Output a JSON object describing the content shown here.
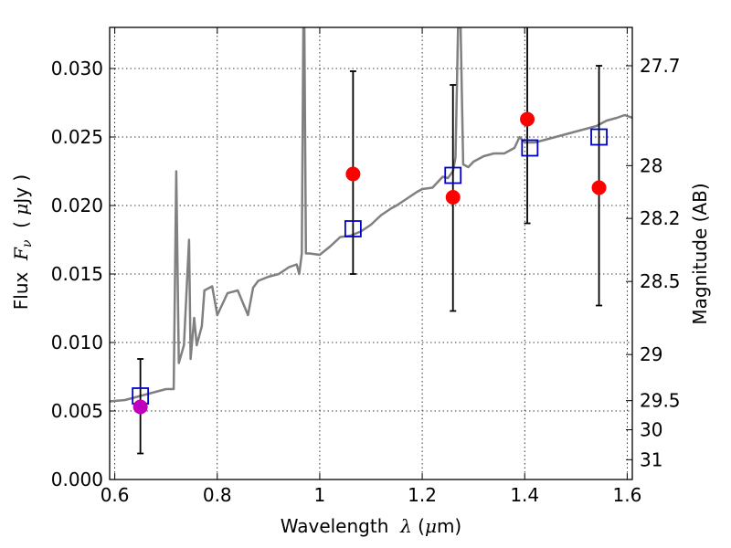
{
  "chart_data": {
    "type": "scatter",
    "xlabel": {
      "prefix": "Wavelength  ",
      "symbol": "λ",
      "unit_open": " (",
      "unit_mu": "μ",
      "unit_rest": "m)"
    },
    "ylabel": {
      "prefix": "Flux  ",
      "symbol": "F",
      "subscript": "ν",
      "unit_open": "  ( ",
      "unit_mu": "μ",
      "unit_rest": "Jy )"
    },
    "y2label": "Magnitude (AB)",
    "xlim": [
      0.59,
      1.61
    ],
    "ylim": [
      0.0,
      0.033
    ],
    "grid": true,
    "x_ticks": [
      {
        "value": 0.6,
        "label": "0.6"
      },
      {
        "value": 0.8,
        "label": "0.8"
      },
      {
        "value": 1.0,
        "label": "1"
      },
      {
        "value": 1.2,
        "label": "1.2"
      },
      {
        "value": 1.4,
        "label": "1.4"
      },
      {
        "value": 1.6,
        "label": "1.6"
      }
    ],
    "y_ticks": [
      {
        "value": 0.0,
        "label": "0.000"
      },
      {
        "value": 0.005,
        "label": "0.005"
      },
      {
        "value": 0.01,
        "label": "0.010"
      },
      {
        "value": 0.015,
        "label": "0.015"
      },
      {
        "value": 0.02,
        "label": "0.020"
      },
      {
        "value": 0.025,
        "label": "0.025"
      },
      {
        "value": 0.03,
        "label": "0.030"
      }
    ],
    "y2_ticks": [
      {
        "magnitude": 27.7,
        "label": "27.7"
      },
      {
        "magnitude": 28.0,
        "label": "28"
      },
      {
        "magnitude": 28.2,
        "label": "28.2"
      },
      {
        "magnitude": 28.5,
        "label": "28.5"
      },
      {
        "magnitude": 29.0,
        "label": "29"
      },
      {
        "magnitude": 29.5,
        "label": "29.5"
      },
      {
        "magnitude": 30.0,
        "label": "30"
      },
      {
        "magnitude": 31.0,
        "label": "31"
      }
    ],
    "series": [
      {
        "kind": "line",
        "color": "#808080",
        "points": [
          [
            0.59,
            0.0057
          ],
          [
            0.62,
            0.0058
          ],
          [
            0.64,
            0.006
          ],
          [
            0.66,
            0.0062
          ],
          [
            0.68,
            0.0064
          ],
          [
            0.7,
            0.0066
          ],
          [
            0.715,
            0.0066
          ],
          [
            0.72,
            0.0225
          ],
          [
            0.725,
            0.0085
          ],
          [
            0.735,
            0.0098
          ],
          [
            0.745,
            0.0175
          ],
          [
            0.748,
            0.0088
          ],
          [
            0.755,
            0.0118
          ],
          [
            0.76,
            0.0098
          ],
          [
            0.77,
            0.0112
          ],
          [
            0.775,
            0.0138
          ],
          [
            0.79,
            0.0141
          ],
          [
            0.8,
            0.012
          ],
          [
            0.81,
            0.0128
          ],
          [
            0.82,
            0.0136
          ],
          [
            0.84,
            0.0138
          ],
          [
            0.86,
            0.012
          ],
          [
            0.87,
            0.014
          ],
          [
            0.88,
            0.0145
          ],
          [
            0.9,
            0.0148
          ],
          [
            0.92,
            0.015
          ],
          [
            0.94,
            0.0155
          ],
          [
            0.955,
            0.0157
          ],
          [
            0.96,
            0.015
          ],
          [
            0.965,
            0.0165
          ],
          [
            0.968,
            0.033
          ],
          [
            0.97,
            0.033
          ],
          [
            0.973,
            0.0165
          ],
          [
            0.98,
            0.0165
          ],
          [
            1.0,
            0.0164
          ],
          [
            1.02,
            0.017
          ],
          [
            1.04,
            0.0177
          ],
          [
            1.06,
            0.0178
          ],
          [
            1.08,
            0.0181
          ],
          [
            1.1,
            0.0186
          ],
          [
            1.12,
            0.0193
          ],
          [
            1.14,
            0.0198
          ],
          [
            1.15,
            0.02
          ],
          [
            1.17,
            0.0205
          ],
          [
            1.19,
            0.021
          ],
          [
            1.2,
            0.0212
          ],
          [
            1.22,
            0.0213
          ],
          [
            1.24,
            0.0221
          ],
          [
            1.25,
            0.022
          ],
          [
            1.26,
            0.0225
          ],
          [
            1.265,
            0.0235
          ],
          [
            1.27,
            0.033
          ],
          [
            1.275,
            0.033
          ],
          [
            1.28,
            0.023
          ],
          [
            1.29,
            0.0228
          ],
          [
            1.3,
            0.0232
          ],
          [
            1.32,
            0.0236
          ],
          [
            1.34,
            0.0238
          ],
          [
            1.36,
            0.0238
          ],
          [
            1.38,
            0.0242
          ],
          [
            1.39,
            0.025
          ],
          [
            1.4,
            0.0246
          ],
          [
            1.42,
            0.0246
          ],
          [
            1.44,
            0.0248
          ],
          [
            1.46,
            0.025
          ],
          [
            1.48,
            0.0252
          ],
          [
            1.5,
            0.0254
          ],
          [
            1.52,
            0.0256
          ],
          [
            1.54,
            0.0258
          ],
          [
            1.56,
            0.0262
          ],
          [
            1.58,
            0.0264
          ],
          [
            1.595,
            0.0266
          ],
          [
            1.61,
            0.0264
          ]
        ]
      },
      {
        "kind": "squares",
        "color": "#0000cc",
        "points": [
          {
            "x": 0.65,
            "y": 0.0061
          },
          {
            "x": 1.065,
            "y": 0.0183
          },
          {
            "x": 1.26,
            "y": 0.0222
          },
          {
            "x": 1.41,
            "y": 0.0242
          },
          {
            "x": 1.545,
            "y": 0.025
          }
        ]
      },
      {
        "kind": "errorbar-points",
        "points": [
          {
            "x": 0.65,
            "y": 0.0053,
            "ylo": 0.0019,
            "yhi": 0.0088,
            "color": "#bf00bf"
          },
          {
            "x": 1.065,
            "y": 0.0223,
            "ylo": 0.015,
            "yhi": 0.0298,
            "color": "#ff0000"
          },
          {
            "x": 1.26,
            "y": 0.0206,
            "ylo": 0.0123,
            "yhi": 0.0288,
            "color": "#ff0000"
          },
          {
            "x": 1.405,
            "y": 0.0263,
            "ylo": 0.0187,
            "yhi": 0.033,
            "color": "#ff0000"
          },
          {
            "x": 1.545,
            "y": 0.0213,
            "ylo": 0.0127,
            "yhi": 0.0302,
            "color": "#ff0000"
          }
        ]
      }
    ]
  }
}
